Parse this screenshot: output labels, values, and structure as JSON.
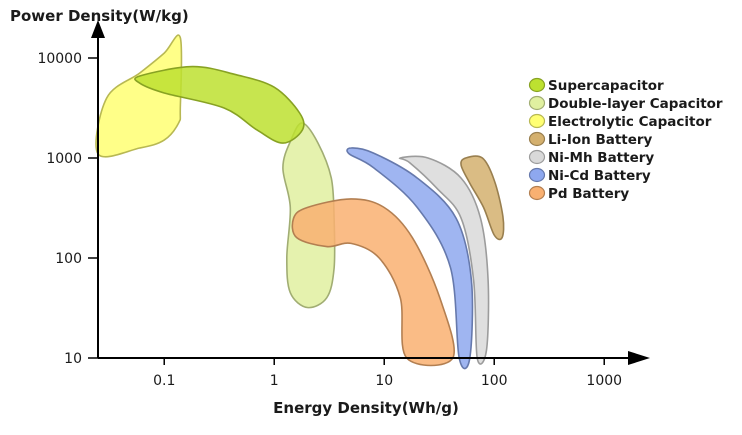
{
  "chart_data": {
    "type": "area",
    "xlabel": "Energy Density(Wh/g)",
    "ylabel": "Power Density(W/kg)",
    "x_scale": "log",
    "y_scale": "log",
    "xlim": [
      0.025,
      2000
    ],
    "ylim": [
      10,
      20000
    ],
    "x_ticks": [
      {
        "value": 0.1,
        "label": "0.1"
      },
      {
        "value": 1,
        "label": "1"
      },
      {
        "value": 10,
        "label": "10"
      },
      {
        "value": 100,
        "label": "100"
      },
      {
        "value": 1000,
        "label": "1000"
      }
    ],
    "y_ticks": [
      {
        "value": 10,
        "label": "10"
      },
      {
        "value": 100,
        "label": "100"
      },
      {
        "value": 1000,
        "label": "1000"
      },
      {
        "value": 10000,
        "label": "10000"
      }
    ],
    "grid": false,
    "legend_position": "right",
    "series": [
      {
        "name": "Electrolytic Capacitor",
        "color": "#ffff73",
        "points": [
          [
            0.025,
            1100
          ],
          [
            0.06,
            1260
          ],
          [
            0.1,
            1510
          ],
          [
            0.135,
            2240
          ],
          [
            0.14,
            3160
          ],
          [
            0.14,
            16000
          ],
          [
            0.1,
            11200
          ],
          [
            0.06,
            7080
          ],
          [
            0.03,
            3980
          ]
        ]
      },
      {
        "name": "Double-layer Capacitor",
        "color": "#e0f0a0",
        "points": [
          [
            1.42,
            1510
          ],
          [
            1.8,
            2240
          ],
          [
            2.5,
            1410
          ],
          [
            3.3,
            630
          ],
          [
            3.5,
            250
          ],
          [
            3.5,
            79
          ],
          [
            3.0,
            40
          ],
          [
            2.0,
            32
          ],
          [
            1.4,
            45
          ],
          [
            1.3,
            100
          ],
          [
            1.4,
            320
          ],
          [
            1.2,
            800
          ]
        ]
      },
      {
        "name": "Supercapacitor",
        "color": "#bde130",
        "points": [
          [
            0.06,
            6600
          ],
          [
            0.18,
            8200
          ],
          [
            0.45,
            6800
          ],
          [
            1.0,
            5100
          ],
          [
            1.7,
            2820
          ],
          [
            1.8,
            1900
          ],
          [
            1.2,
            1410
          ],
          [
            0.7,
            1900
          ],
          [
            0.35,
            3160
          ],
          [
            0.1,
            4470
          ],
          [
            0.06,
            5600
          ]
        ]
      },
      {
        "name": "Pd Battery",
        "color": "#f9b071",
        "points": [
          [
            2.0,
            320
          ],
          [
            5.0,
            390
          ],
          [
            10.0,
            320
          ],
          [
            18.0,
            160
          ],
          [
            32.0,
            40
          ],
          [
            42.0,
            10
          ],
          [
            16.0,
            10
          ],
          [
            14.0,
            40
          ],
          [
            9.0,
            100
          ],
          [
            5.0,
            140
          ],
          [
            3.0,
            130
          ],
          [
            1.6,
            160
          ],
          [
            1.5,
            250
          ]
        ]
      },
      {
        "name": "Ni-Cd Battery",
        "color": "#8ea8ef",
        "points": [
          [
            5.0,
            1260
          ],
          [
            8.0,
            1120
          ],
          [
            20.0,
            630
          ],
          [
            45.0,
            250
          ],
          [
            62.0,
            60
          ],
          [
            60.0,
            10
          ],
          [
            48.0,
            10
          ],
          [
            40.0,
            80
          ],
          [
            20.0,
            320
          ],
          [
            8.0,
            800
          ],
          [
            4.8,
            1100
          ]
        ]
      },
      {
        "name": "Ni-Mh Battery",
        "color": "#d9d9d9",
        "points": [
          [
            14.0,
            1000
          ],
          [
            25.0,
            1000
          ],
          [
            50.0,
            630
          ],
          [
            75.0,
            250
          ],
          [
            88.0,
            60
          ],
          [
            85.0,
            12
          ],
          [
            70.0,
            10
          ],
          [
            65.0,
            60
          ],
          [
            50.0,
            250
          ],
          [
            30.0,
            500
          ],
          [
            17.0,
            900
          ]
        ]
      },
      {
        "name": "Li-Ion Battery",
        "color": "#d4b06e",
        "points": [
          [
            55.0,
            1000
          ],
          [
            78.0,
            1000
          ],
          [
            100.0,
            600
          ],
          [
            120.0,
            260
          ],
          [
            118.0,
            160
          ],
          [
            100.0,
            170
          ],
          [
            80.0,
            320
          ],
          [
            60.0,
            560
          ],
          [
            50.0,
            850
          ]
        ]
      }
    ],
    "legend_order": [
      "Supercapacitor",
      "Double-layer Capacitor",
      "Electrolytic Capacitor",
      "Li-Ion Battery",
      "Ni-Mh Battery",
      "Ni-Cd Battery",
      "Pd Battery"
    ]
  }
}
